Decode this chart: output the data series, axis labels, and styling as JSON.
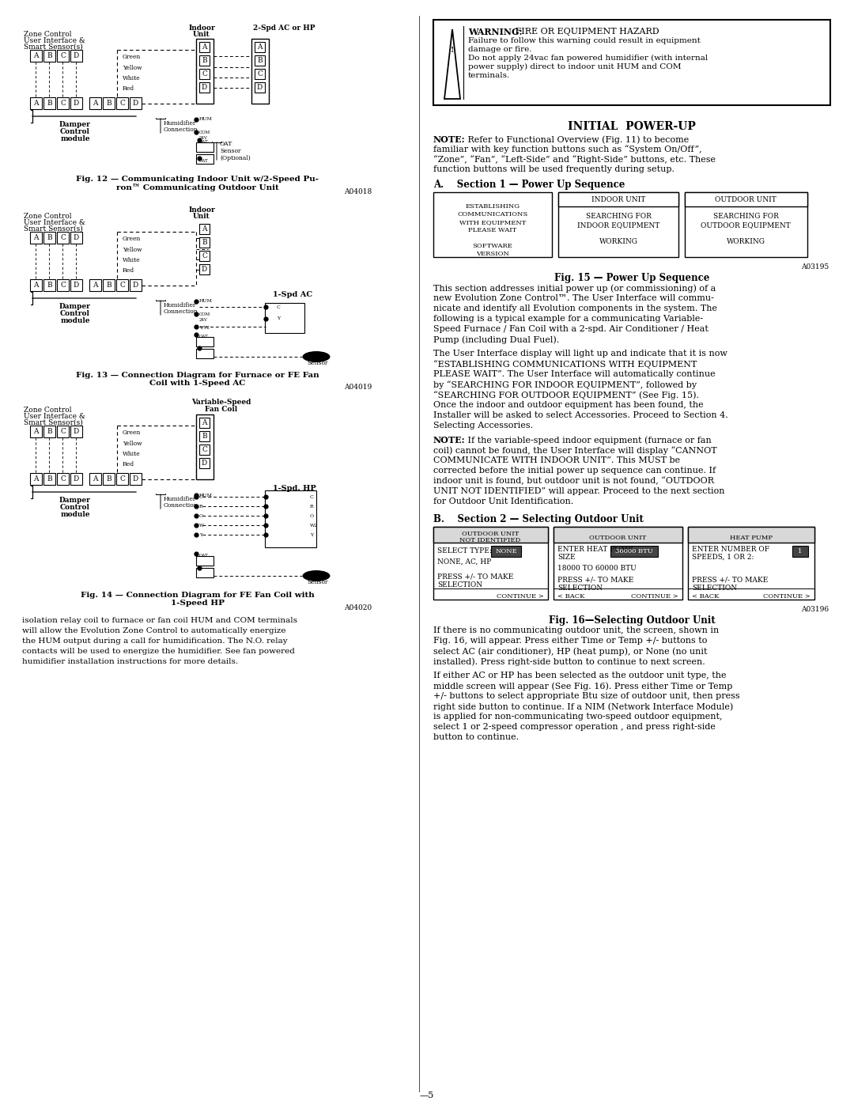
{
  "fig12_code": "A04018",
  "fig13_code": "A04019",
  "fig14_code": "A04020",
  "fig15_code": "A03195",
  "fig16_code": "A03196"
}
